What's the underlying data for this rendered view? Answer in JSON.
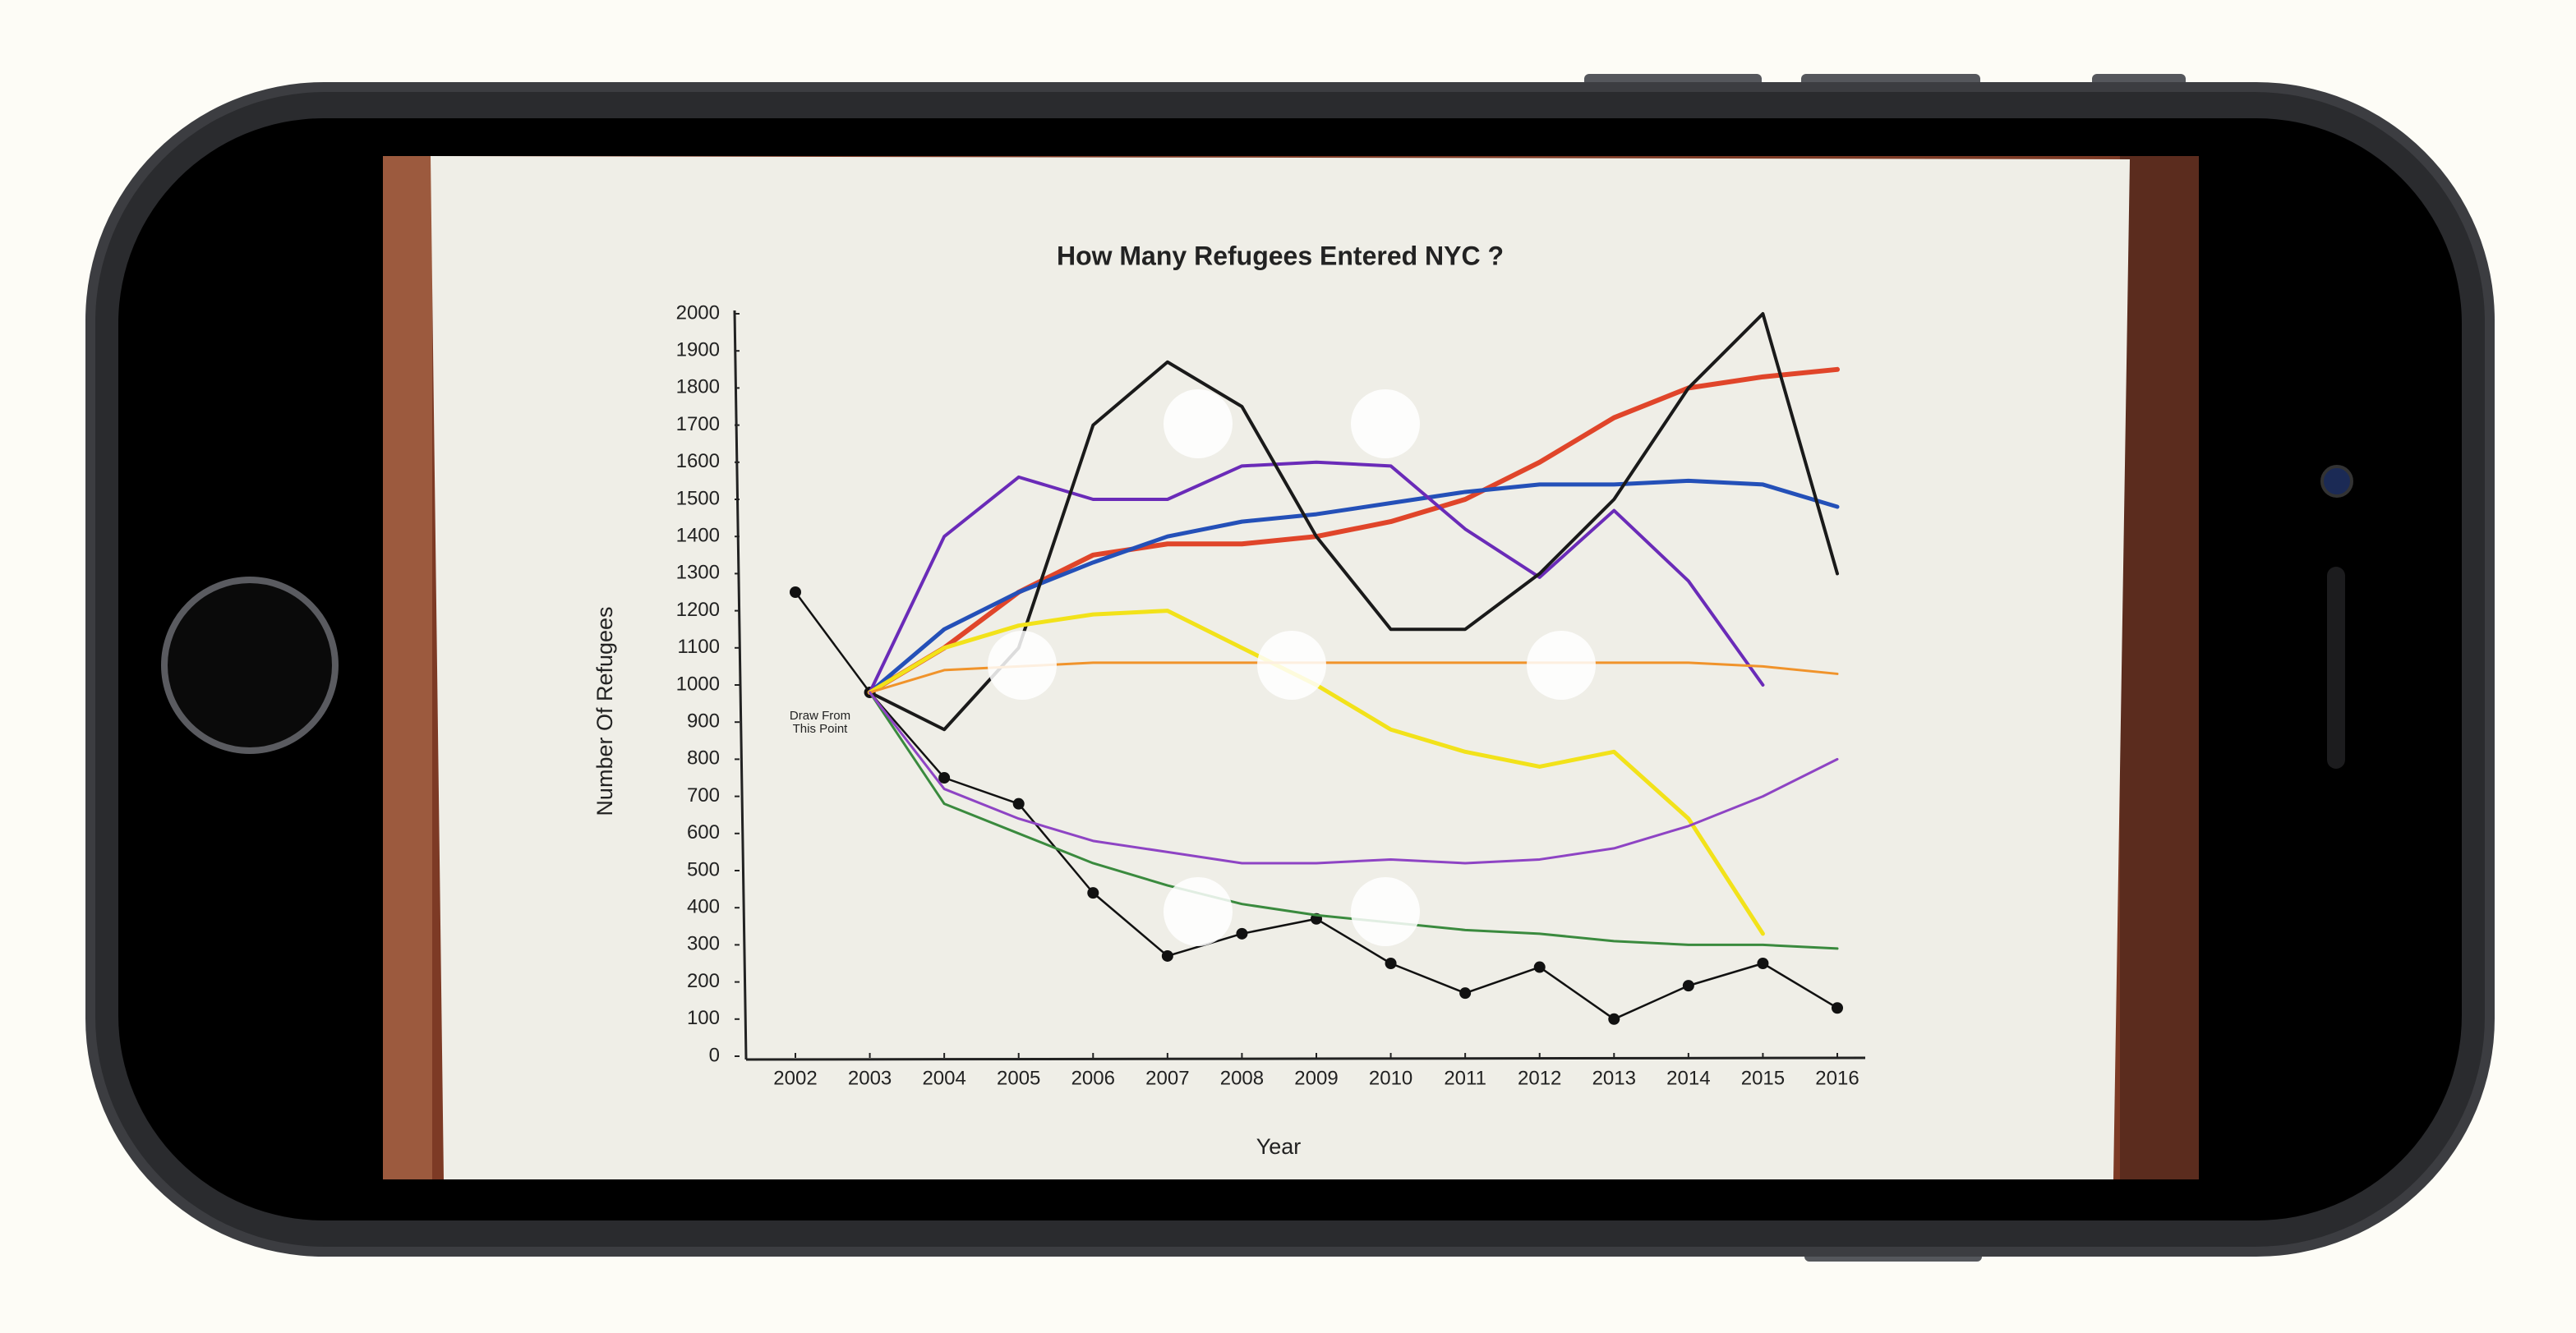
{
  "chart_data": {
    "type": "line",
    "title": "How Many Refugees Entered NYC ?",
    "x_label": "Year",
    "y_label": "Number Of Refugees",
    "annotation": [
      "Draw From",
      "This Point"
    ],
    "xlim": [
      2002,
      2016
    ],
    "xticks": [
      2002,
      2003,
      2004,
      2005,
      2006,
      2007,
      2008,
      2009,
      2010,
      2011,
      2012,
      2013,
      2014,
      2015,
      2016
    ],
    "ylim": [
      0,
      2000
    ],
    "yticks": [
      0,
      100,
      200,
      300,
      400,
      500,
      600,
      700,
      800,
      900,
      1000,
      1100,
      1200,
      1300,
      1400,
      1500,
      1600,
      1700,
      1800,
      1900,
      2000
    ],
    "series": [
      {
        "color": "#111111",
        "markers": true,
        "width": 2.5,
        "x": [
          2002,
          2003,
          2004,
          2005,
          2006,
          2007,
          2008,
          2009,
          2010,
          2011,
          2012,
          2013,
          2014,
          2015,
          2016
        ],
        "values": [
          1250,
          980,
          750,
          680,
          440,
          270,
          330,
          370,
          250,
          170,
          240,
          100,
          190,
          250,
          130
        ]
      },
      {
        "color": "#e0452a",
        "markers": false,
        "width": 6,
        "x": [
          2003,
          2004,
          2005,
          2006,
          2007,
          2008,
          2009,
          2010,
          2011,
          2012,
          2013,
          2014,
          2015,
          2016
        ],
        "values": [
          980,
          1100,
          1250,
          1350,
          1380,
          1380,
          1400,
          1440,
          1500,
          1600,
          1720,
          1800,
          1830,
          1850
        ]
      },
      {
        "color": "#2450b8",
        "markers": false,
        "width": 5,
        "x": [
          2003,
          2004,
          2005,
          2006,
          2007,
          2008,
          2009,
          2010,
          2011,
          2012,
          2013,
          2014,
          2015,
          2016
        ],
        "values": [
          980,
          1150,
          1250,
          1330,
          1400,
          1440,
          1460,
          1490,
          1520,
          1540,
          1540,
          1550,
          1540,
          1480
        ]
      },
      {
        "color": "#6a2bb8",
        "markers": false,
        "width": 4,
        "x": [
          2003,
          2004,
          2005,
          2006,
          2007,
          2008,
          2009,
          2010,
          2011,
          2012,
          2013,
          2014,
          2015,
          2016
        ],
        "values": [
          980,
          1400,
          1560,
          1500,
          1500,
          1590,
          1600,
          1590,
          1420,
          1290,
          1470,
          1280,
          1000,
          null
        ]
      },
      {
        "color": "#1a1a1a",
        "markers": false,
        "width": 4,
        "x": [
          2003,
          2004,
          2005,
          2006,
          2007,
          2008,
          2009,
          2010,
          2011,
          2012,
          2013,
          2014,
          2015,
          2016
        ],
        "values": [
          980,
          880,
          1100,
          1700,
          1870,
          1750,
          1400,
          1150,
          1150,
          1300,
          1500,
          1800,
          2000,
          1300
        ]
      },
      {
        "color": "#f2e21a",
        "markers": false,
        "width": 5,
        "x": [
          2003,
          2004,
          2005,
          2006,
          2007,
          2008,
          2009,
          2010,
          2011,
          2012,
          2013,
          2014,
          2015,
          2016
        ],
        "values": [
          980,
          1100,
          1160,
          1190,
          1200,
          1100,
          1000,
          880,
          820,
          780,
          820,
          640,
          330,
          null
        ]
      },
      {
        "color": "#3a8a3e",
        "markers": false,
        "width": 3,
        "x": [
          2003,
          2004,
          2005,
          2006,
          2007,
          2008,
          2009,
          2010,
          2011,
          2012,
          2013,
          2014,
          2015,
          2016
        ],
        "values": [
          980,
          680,
          600,
          520,
          460,
          410,
          380,
          360,
          340,
          330,
          310,
          300,
          300,
          290
        ]
      },
      {
        "color": "#f0932b",
        "markers": false,
        "width": 3,
        "x": [
          2003,
          2004,
          2005,
          2006,
          2007,
          2008,
          2009,
          2010,
          2011,
          2012,
          2013,
          2014,
          2015,
          2016
        ],
        "values": [
          980,
          1040,
          1050,
          1060,
          1060,
          1060,
          1060,
          1060,
          1060,
          1060,
          1060,
          1060,
          1050,
          1030
        ]
      },
      {
        "color": "#8e44c4",
        "markers": false,
        "width": 3,
        "x": [
          2003,
          2004,
          2005,
          2006,
          2007,
          2008,
          2009,
          2010,
          2011,
          2012,
          2013,
          2014,
          2015,
          2016
        ],
        "values": [
          980,
          720,
          640,
          580,
          550,
          520,
          520,
          530,
          520,
          530,
          560,
          620,
          700,
          800
        ]
      }
    ]
  }
}
